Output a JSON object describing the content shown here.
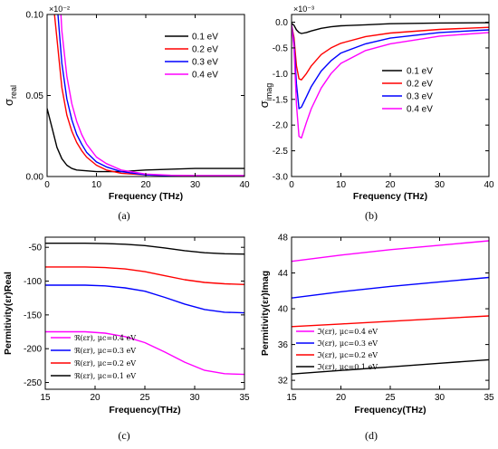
{
  "chart_data": [
    {
      "id": "a",
      "type": "line",
      "caption": "(a)",
      "xlabel": "Frequency (THz)",
      "ylabel_main": "σ",
      "ylabel_sub": "real",
      "exponent": "×10⁻²",
      "xlim": [
        0,
        40
      ],
      "ylim": [
        0,
        0.1
      ],
      "xticks": [
        0,
        10,
        20,
        30,
        40
      ],
      "xtick_labels": [
        "0",
        "10",
        "20",
        "30",
        "40"
      ],
      "yticks": [
        0,
        0.05,
        0.1
      ],
      "ytick_labels": [
        "0.00",
        "0.05",
        "0.10"
      ],
      "legend_position": "top-right",
      "series": [
        {
          "name": "0.1 eV",
          "color": "#000000",
          "x": [
            0,
            1,
            2,
            3,
            4,
            5,
            6,
            8,
            10,
            15,
            20,
            30,
            40
          ],
          "y": [
            0.042,
            0.03,
            0.018,
            0.011,
            0.007,
            0.005,
            0.004,
            0.0035,
            0.003,
            0.003,
            0.004,
            0.005,
            0.005
          ]
        },
        {
          "name": "0.2 eV",
          "color": "#ff0000",
          "x": [
            1.5,
            2,
            3,
            4,
            5,
            6,
            7,
            8,
            10,
            12,
            15,
            20,
            25,
            30,
            40
          ],
          "y": [
            0.1,
            0.085,
            0.055,
            0.038,
            0.028,
            0.021,
            0.016,
            0.012,
            0.007,
            0.004,
            0.002,
            0.001,
            0.0005,
            0.0005,
            0.0005
          ]
        },
        {
          "name": "0.3 eV",
          "color": "#0000ff",
          "x": [
            2.2,
            3,
            4,
            5,
            6,
            7,
            8,
            10,
            12,
            15,
            20,
            25,
            30,
            40
          ],
          "y": [
            0.1,
            0.07,
            0.048,
            0.035,
            0.026,
            0.02,
            0.015,
            0.009,
            0.006,
            0.003,
            0.001,
            0.0005,
            0.0005,
            0.0005
          ]
        },
        {
          "name": "0.4 eV",
          "color": "#ff00ff",
          "x": [
            2.8,
            3,
            4,
            5,
            6,
            7,
            8,
            10,
            12,
            15,
            20,
            25,
            30,
            40
          ],
          "y": [
            0.1,
            0.09,
            0.062,
            0.045,
            0.034,
            0.026,
            0.02,
            0.012,
            0.008,
            0.004,
            0.0015,
            0.0008,
            0.0005,
            0.0005
          ]
        }
      ]
    },
    {
      "id": "b",
      "type": "line",
      "caption": "(b)",
      "xlabel": "Frequency (THz)",
      "ylabel_main": "σ",
      "ylabel_sub": "imag",
      "exponent": "×10⁻³",
      "xlim": [
        0,
        40
      ],
      "ylim": [
        -3.0,
        0.15
      ],
      "xticks": [
        0,
        10,
        20,
        30,
        40
      ],
      "xtick_labels": [
        "0",
        "10",
        "20",
        "30",
        "40"
      ],
      "yticks": [
        0,
        -0.5,
        -1.0,
        -1.5,
        -2.0,
        -2.5,
        -3.0
      ],
      "ytick_labels": [
        "0.0",
        "-0.5",
        "-1.0",
        "-1.5",
        "-2.0",
        "-2.5",
        "-3.0"
      ],
      "legend_position": "right",
      "series": [
        {
          "name": "0.1 eV",
          "color": "#000000",
          "x": [
            0,
            0.5,
            1,
            1.5,
            2,
            3,
            4,
            6,
            8,
            10,
            15,
            20,
            30,
            40
          ],
          "y": [
            -0.02,
            -0.06,
            -0.15,
            -0.2,
            -0.22,
            -0.2,
            -0.17,
            -0.12,
            -0.09,
            -0.07,
            -0.05,
            -0.03,
            -0.015,
            -0.01
          ]
        },
        {
          "name": "0.2 eV",
          "color": "#ff0000",
          "x": [
            0,
            0.5,
            1,
            1.5,
            2,
            3,
            4,
            6,
            8,
            10,
            15,
            20,
            30,
            40
          ],
          "y": [
            -0.05,
            -0.3,
            -0.85,
            -1.1,
            -1.12,
            -1.0,
            -0.85,
            -0.63,
            -0.5,
            -0.41,
            -0.28,
            -0.21,
            -0.14,
            -0.1
          ]
        },
        {
          "name": "0.3 eV",
          "color": "#0000ff",
          "x": [
            0,
            0.5,
            1,
            1.5,
            2,
            3,
            4,
            6,
            8,
            10,
            15,
            20,
            30,
            40
          ],
          "y": [
            -0.05,
            -0.4,
            -1.2,
            -1.68,
            -1.65,
            -1.45,
            -1.25,
            -0.95,
            -0.75,
            -0.6,
            -0.42,
            -0.31,
            -0.2,
            -0.15
          ]
        },
        {
          "name": "0.4 eV",
          "color": "#ff00ff",
          "x": [
            0,
            0.5,
            1,
            1.5,
            2,
            3,
            4,
            6,
            8,
            10,
            15,
            20,
            30,
            40
          ],
          "y": [
            -0.05,
            -0.5,
            -1.6,
            -2.22,
            -2.25,
            -1.95,
            -1.68,
            -1.28,
            -1.0,
            -0.8,
            -0.55,
            -0.42,
            -0.27,
            -0.2
          ]
        }
      ]
    },
    {
      "id": "c",
      "type": "line",
      "caption": "(c)",
      "xlabel": "Frequency(THz)",
      "ylabel": "Permitivity(εr)Real",
      "xlim": [
        15,
        35
      ],
      "ylim": [
        -260,
        -35
      ],
      "xticks": [
        15,
        20,
        25,
        30,
        35
      ],
      "xtick_labels": [
        "15",
        "20",
        "25",
        "30",
        "35"
      ],
      "yticks": [
        -50,
        -100,
        -150,
        -200,
        -250
      ],
      "ytick_labels": [
        "-50",
        "-100",
        "-150",
        "-200",
        "-250"
      ],
      "legend_position": "bottom-left",
      "legend_order": [
        3,
        2,
        1,
        0
      ],
      "series": [
        {
          "name": "ℜ(εr), μc=0.1 eV",
          "color": "#000000",
          "x": [
            15,
            17,
            19,
            21,
            23,
            25,
            27,
            29,
            31,
            33,
            35
          ],
          "y": [
            -44,
            -44,
            -44,
            -44.5,
            -45.5,
            -47.5,
            -51,
            -55,
            -58,
            -59.5,
            -60
          ]
        },
        {
          "name": "ℜ(εr), μc=0.2 eV",
          "color": "#ff0000",
          "x": [
            15,
            17,
            19,
            21,
            23,
            25,
            27,
            29,
            31,
            33,
            35
          ],
          "y": [
            -79,
            -79,
            -79,
            -80,
            -82,
            -86,
            -92,
            -98,
            -102,
            -104,
            -105
          ]
        },
        {
          "name": "ℜ(εr), μc=0.3 eV",
          "color": "#0000ff",
          "x": [
            15,
            17,
            19,
            21,
            23,
            25,
            27,
            29,
            31,
            33,
            35
          ],
          "y": [
            -106,
            -106,
            -106,
            -107,
            -110,
            -115,
            -124,
            -134,
            -142,
            -146,
            -147
          ]
        },
        {
          "name": "ℜ(εr), μc=0.4 eV",
          "color": "#ff00ff",
          "x": [
            15,
            17,
            19,
            21,
            23,
            25,
            27,
            29,
            31,
            33,
            35
          ],
          "y": [
            -175,
            -175,
            -175,
            -177,
            -182,
            -191,
            -205,
            -220,
            -232,
            -237,
            -238
          ]
        }
      ]
    },
    {
      "id": "d",
      "type": "line",
      "caption": "(d)",
      "xlabel": "Frequency(THz)",
      "ylabel": "Permitivity(εr)Imag",
      "xlim": [
        15,
        35
      ],
      "ylim": [
        31,
        48
      ],
      "xticks": [
        15,
        20,
        25,
        30,
        35
      ],
      "xtick_labels": [
        "15",
        "20",
        "25",
        "30",
        "35"
      ],
      "yticks": [
        32,
        36,
        40,
        44,
        48
      ],
      "ytick_labels": [
        "32",
        "36",
        "40",
        "44",
        "48"
      ],
      "legend_position": "bottom-left",
      "legend_order": [
        3,
        2,
        1,
        0
      ],
      "series": [
        {
          "name": "ℑ(εr), μc=0.1 eV",
          "color": "#000000",
          "x": [
            15,
            20,
            25,
            30,
            35
          ],
          "y": [
            32.7,
            33.1,
            33.5,
            33.9,
            34.3
          ]
        },
        {
          "name": "ℑ(εr), μc=0.2 eV",
          "color": "#ff0000",
          "x": [
            15,
            20,
            25,
            30,
            35
          ],
          "y": [
            38.0,
            38.3,
            38.6,
            38.9,
            39.2
          ]
        },
        {
          "name": "ℑ(εr), μc=0.3 eV",
          "color": "#0000ff",
          "x": [
            15,
            20,
            25,
            30,
            35
          ],
          "y": [
            41.2,
            41.9,
            42.5,
            43.0,
            43.5
          ]
        },
        {
          "name": "ℑ(εr), μc=0.4 eV",
          "color": "#ff00ff",
          "x": [
            15,
            20,
            25,
            30,
            35
          ],
          "y": [
            45.3,
            46.0,
            46.6,
            47.1,
            47.6
          ]
        }
      ]
    }
  ]
}
